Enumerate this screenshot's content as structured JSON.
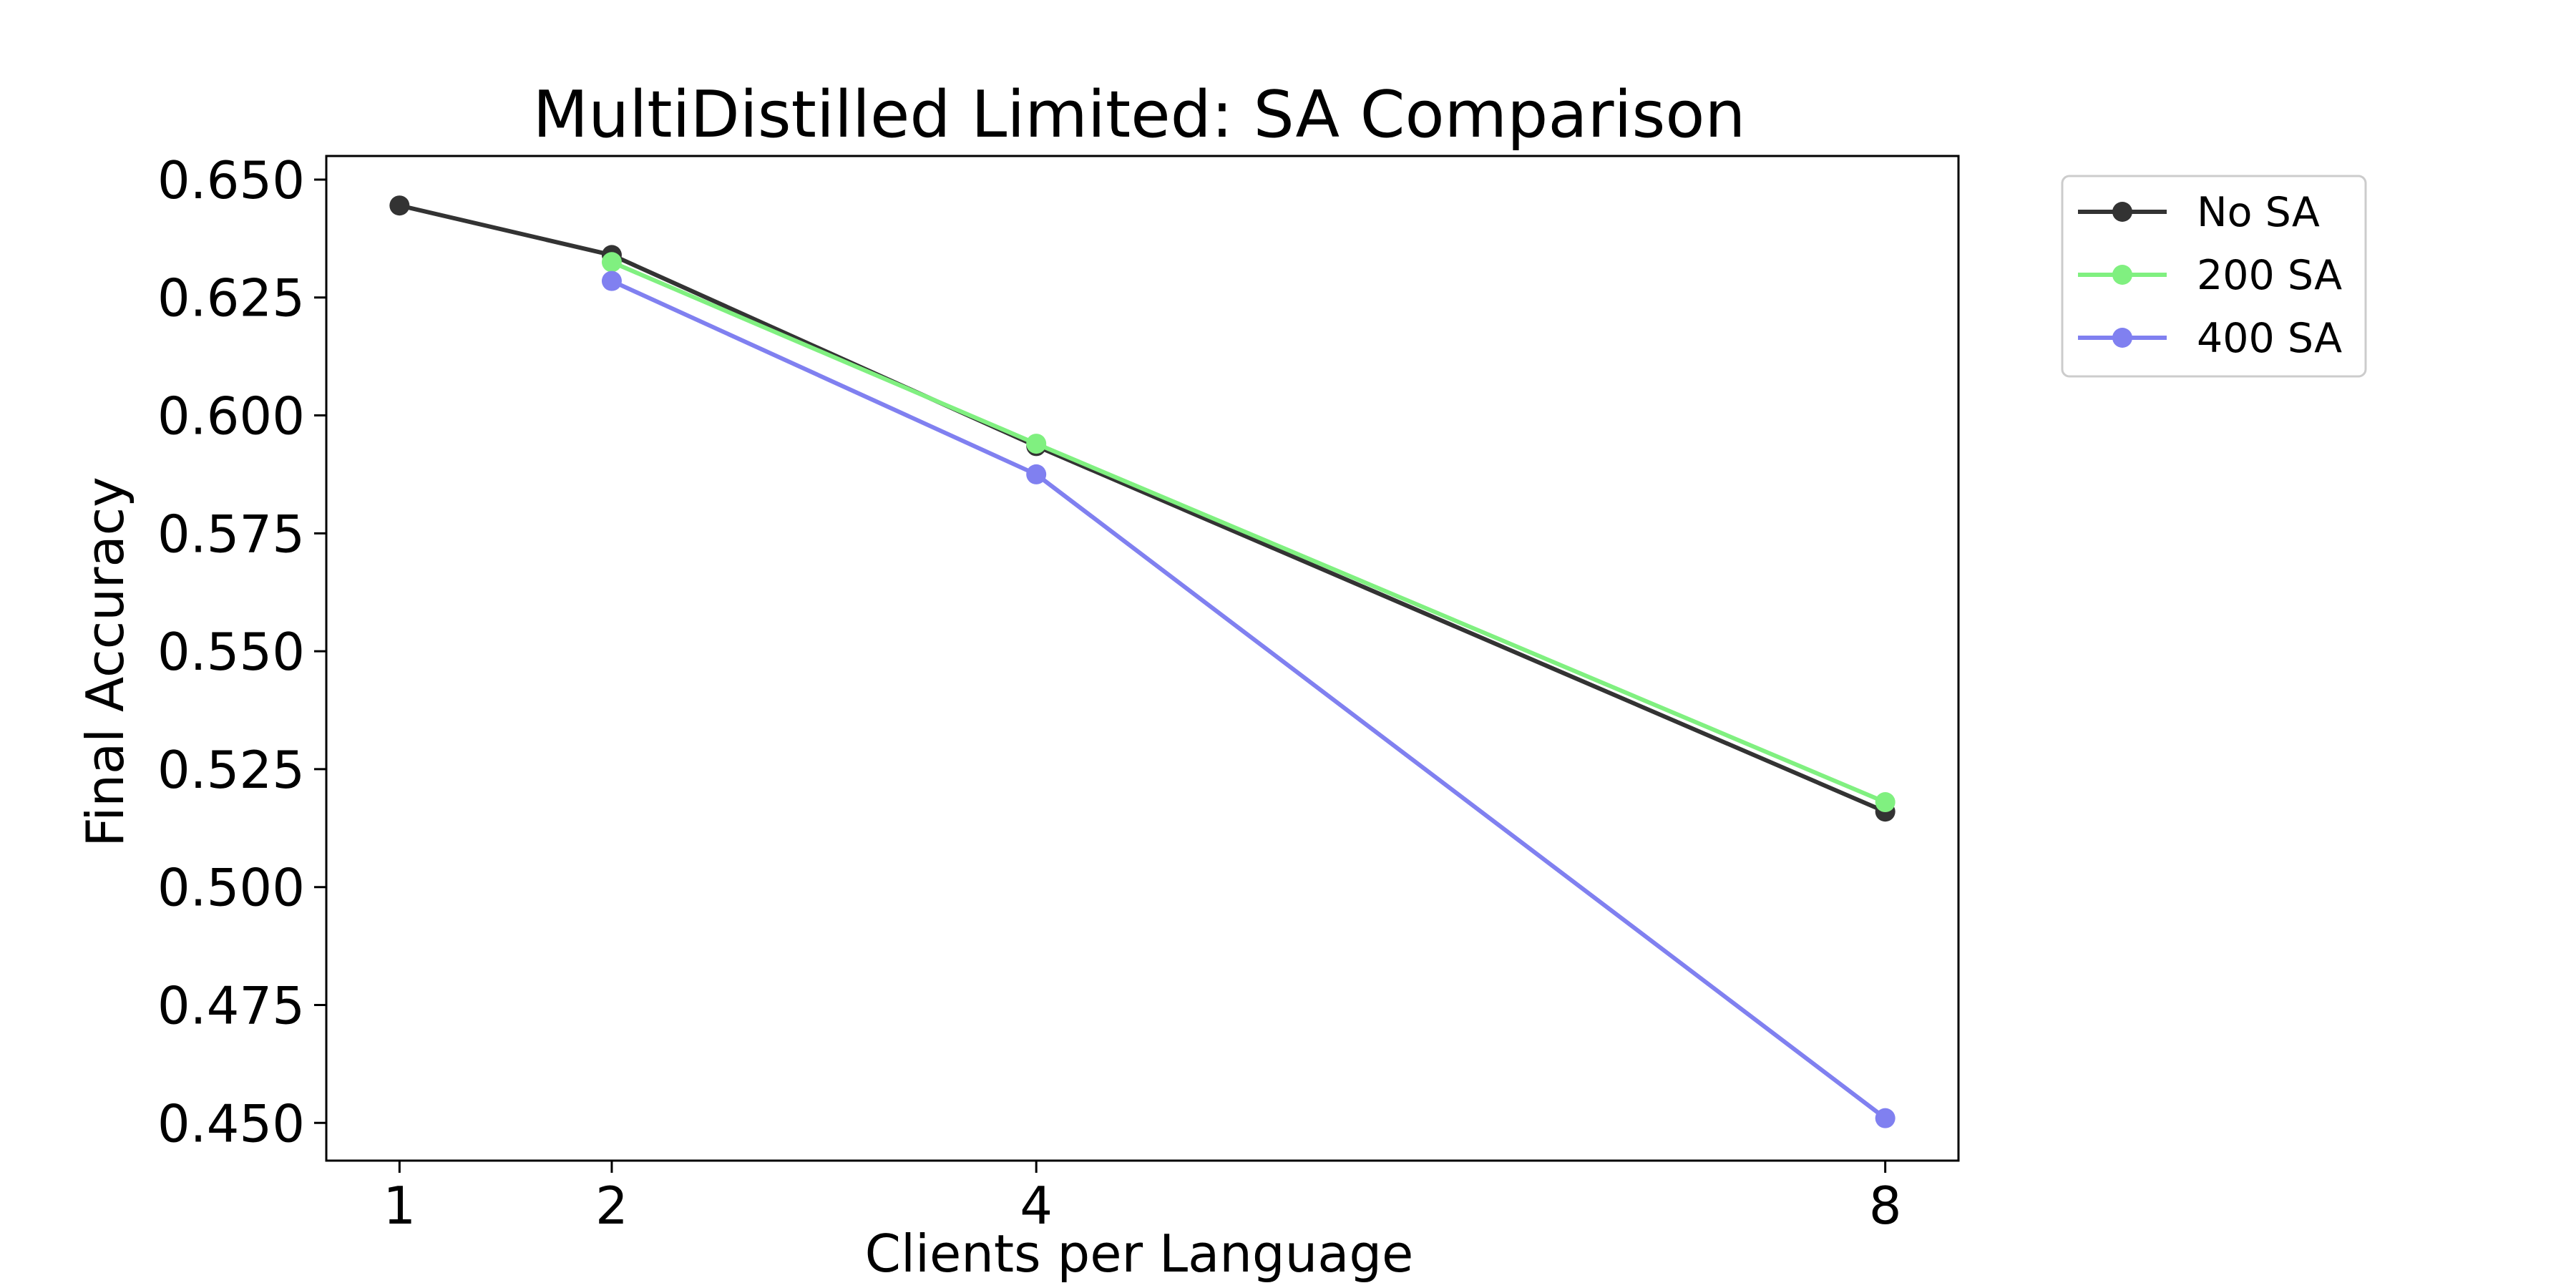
{
  "chart_data": {
    "type": "line",
    "title": "MultiDistilled Limited: SA Comparison",
    "xlabel": "Clients per Language",
    "ylabel": "Final Accuracy",
    "x_ticks": [
      1,
      2,
      4,
      8
    ],
    "y_ticks": [
      0.45,
      0.475,
      0.5,
      0.525,
      0.55,
      0.575,
      0.6,
      0.625,
      0.65
    ],
    "y_tick_labels": [
      "0.450",
      "0.475",
      "0.500",
      "0.525",
      "0.550",
      "0.575",
      "0.600",
      "0.625",
      "0.650"
    ],
    "xlim": [
      0.655,
      8.345
    ],
    "ylim": [
      0.442,
      0.655
    ],
    "grid": false,
    "legend_placement": "outside-top-right",
    "series": [
      {
        "name": "No SA",
        "color": "#333333",
        "x": [
          1,
          2,
          4,
          8
        ],
        "y": [
          0.6445,
          0.634,
          0.5935,
          0.516
        ]
      },
      {
        "name": "200 SA",
        "color": "#80f080",
        "x": [
          2,
          4,
          8
        ],
        "y": [
          0.6325,
          0.594,
          0.518
        ]
      },
      {
        "name": "400 SA",
        "color": "#8080f0",
        "x": [
          2,
          4,
          8
        ],
        "y": [
          0.6285,
          0.5875,
          0.451
        ]
      }
    ]
  }
}
